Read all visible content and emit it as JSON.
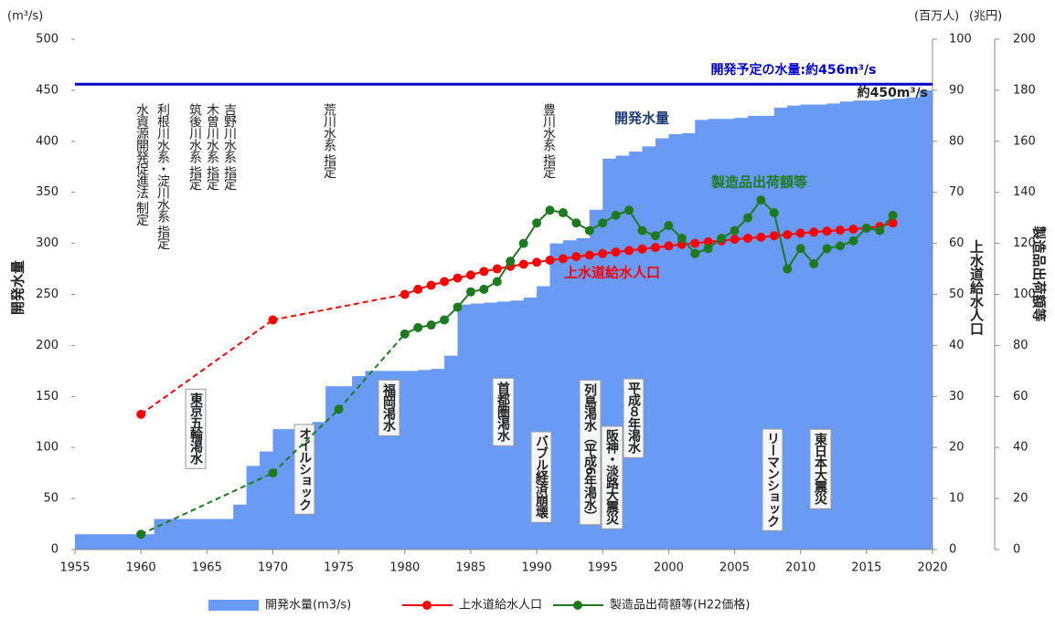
{
  "chart_data": {
    "type": "combo",
    "y_unit": "(m³/s)",
    "y2_unit": "(百万人)",
    "y3_unit": "(兆円)",
    "ylabel": "開発水量",
    "y2label": "上水道給水人口",
    "y3label": "製造品出荷額等",
    "xlim": [
      1955,
      2020
    ],
    "xticks": [
      1955,
      1960,
      1965,
      1970,
      1975,
      1980,
      1985,
      1990,
      1995,
      2000,
      2005,
      2010,
      2015,
      2020
    ],
    "ylim": [
      0,
      500
    ],
    "yticks": [
      0,
      50,
      100,
      150,
      200,
      250,
      300,
      350,
      400,
      450,
      500
    ],
    "y2lim": [
      0,
      100
    ],
    "y2ticks": [
      0,
      10,
      20,
      30,
      40,
      50,
      60,
      70,
      80,
      90,
      100
    ],
    "y3lim": [
      0,
      200
    ],
    "y3ticks": [
      0,
      20,
      40,
      60,
      80,
      100,
      120,
      140,
      160,
      180,
      200
    ],
    "series": [
      {
        "name": "開発水量(m3/s)",
        "type": "area",
        "color": "#6a9bf4",
        "x": [
          1955,
          1956,
          1957,
          1958,
          1959,
          1960,
          1961,
          1962,
          1963,
          1964,
          1965,
          1966,
          1967,
          1968,
          1969,
          1970,
          1971,
          1972,
          1973,
          1974,
          1975,
          1976,
          1977,
          1978,
          1979,
          1980,
          1981,
          1982,
          1983,
          1984,
          1985,
          1986,
          1987,
          1988,
          1989,
          1990,
          1991,
          1992,
          1993,
          1994,
          1995,
          1996,
          1997,
          1998,
          1999,
          2000,
          2001,
          2002,
          2003,
          2004,
          2005,
          2006,
          2007,
          2008,
          2009,
          2010,
          2011,
          2012,
          2013,
          2014,
          2015,
          2016,
          2017,
          2018,
          2019
        ],
        "values": [
          15,
          15,
          15,
          15,
          15,
          15,
          30,
          30,
          30,
          30,
          30,
          30,
          44,
          82,
          96,
          118,
          118,
          120,
          125,
          160,
          160,
          170,
          175,
          175,
          175,
          175,
          176,
          177,
          190,
          240,
          241,
          242,
          243,
          244,
          247,
          258,
          300,
          303,
          305,
          333,
          383,
          386,
          390,
          395,
          403,
          407,
          408,
          421,
          422,
          422,
          423,
          425,
          425,
          433,
          435,
          436,
          436,
          437,
          439,
          440,
          440,
          441,
          442,
          443,
          450
        ]
      },
      {
        "name": "上水道給水人口",
        "type": "line",
        "axis": "y2",
        "color": "#ff0000",
        "x": [
          1960,
          1970,
          1980,
          1981,
          1982,
          1983,
          1984,
          1985,
          1986,
          1987,
          1988,
          1989,
          1990,
          1991,
          1992,
          1993,
          1994,
          1995,
          1996,
          1997,
          1998,
          1999,
          2000,
          2001,
          2002,
          2003,
          2004,
          2005,
          2006,
          2007,
          2008,
          2009,
          2010,
          2011,
          2012,
          2013,
          2014,
          2015,
          2016,
          2017
        ],
        "values": [
          26.5,
          45,
          50,
          51,
          51.8,
          52.5,
          53.2,
          53.8,
          54.5,
          55,
          55.5,
          55.9,
          56.3,
          56.7,
          57,
          57.4,
          57.7,
          58,
          58.3,
          58.6,
          58.9,
          59.2,
          59.5,
          59.8,
          60,
          60.3,
          60.5,
          60.8,
          61,
          61.2,
          61.5,
          61.7,
          62,
          62.2,
          62.4,
          62.6,
          62.8,
          63,
          63.3,
          64
        ]
      },
      {
        "name": "製造品出荷額等(H22価格)",
        "type": "line",
        "axis": "y3",
        "color": "#1e7a1e",
        "x": [
          1960,
          1970,
          1975,
          1980,
          1981,
          1982,
          1983,
          1984,
          1985,
          1986,
          1987,
          1988,
          1989,
          1990,
          1991,
          1992,
          1993,
          1994,
          1995,
          1996,
          1997,
          1998,
          1999,
          2000,
          2001,
          2002,
          2003,
          2004,
          2005,
          2006,
          2007,
          2008,
          2009,
          2010,
          2011,
          2012,
          2013,
          2014,
          2015,
          2016,
          2017
        ],
        "values": [
          6,
          30,
          55,
          84.5,
          87,
          88,
          90,
          95,
          101,
          102,
          105,
          113,
          120,
          128,
          133,
          132,
          128,
          125,
          128,
          131,
          133,
          125,
          123,
          127,
          122,
          116,
          118,
          122,
          125,
          130,
          137,
          132,
          110,
          118,
          112,
          118,
          119,
          121,
          126,
          125,
          131
        ]
      }
    ],
    "series_labels": [
      "開発水量",
      "上水道給水人口",
      "製造品出荷額等"
    ],
    "reference_line": {
      "value": 456,
      "label": "開発予定の水量:約456m³/s",
      "color": "#0000cc"
    },
    "annotations": [
      "約450m³/s"
    ],
    "designations": [
      "水資源開発促進法 制定",
      "利根川水系・淀川水系 指定",
      "筑後川水系 指定",
      "木曽川水系 指定",
      "吉野川水系 指定",
      "荒川水系 指定",
      "豊川水系 指定"
    ],
    "events": [
      "東京五輪渇水",
      "オイルショック",
      "福岡渇水",
      "首都圏渇水",
      "バブル経済崩壊",
      "列島渇水（平成6年渇水）",
      "阪神・淡路大震災",
      "平成８年渇水",
      "リーマンショック",
      "東日本大震災"
    ]
  }
}
